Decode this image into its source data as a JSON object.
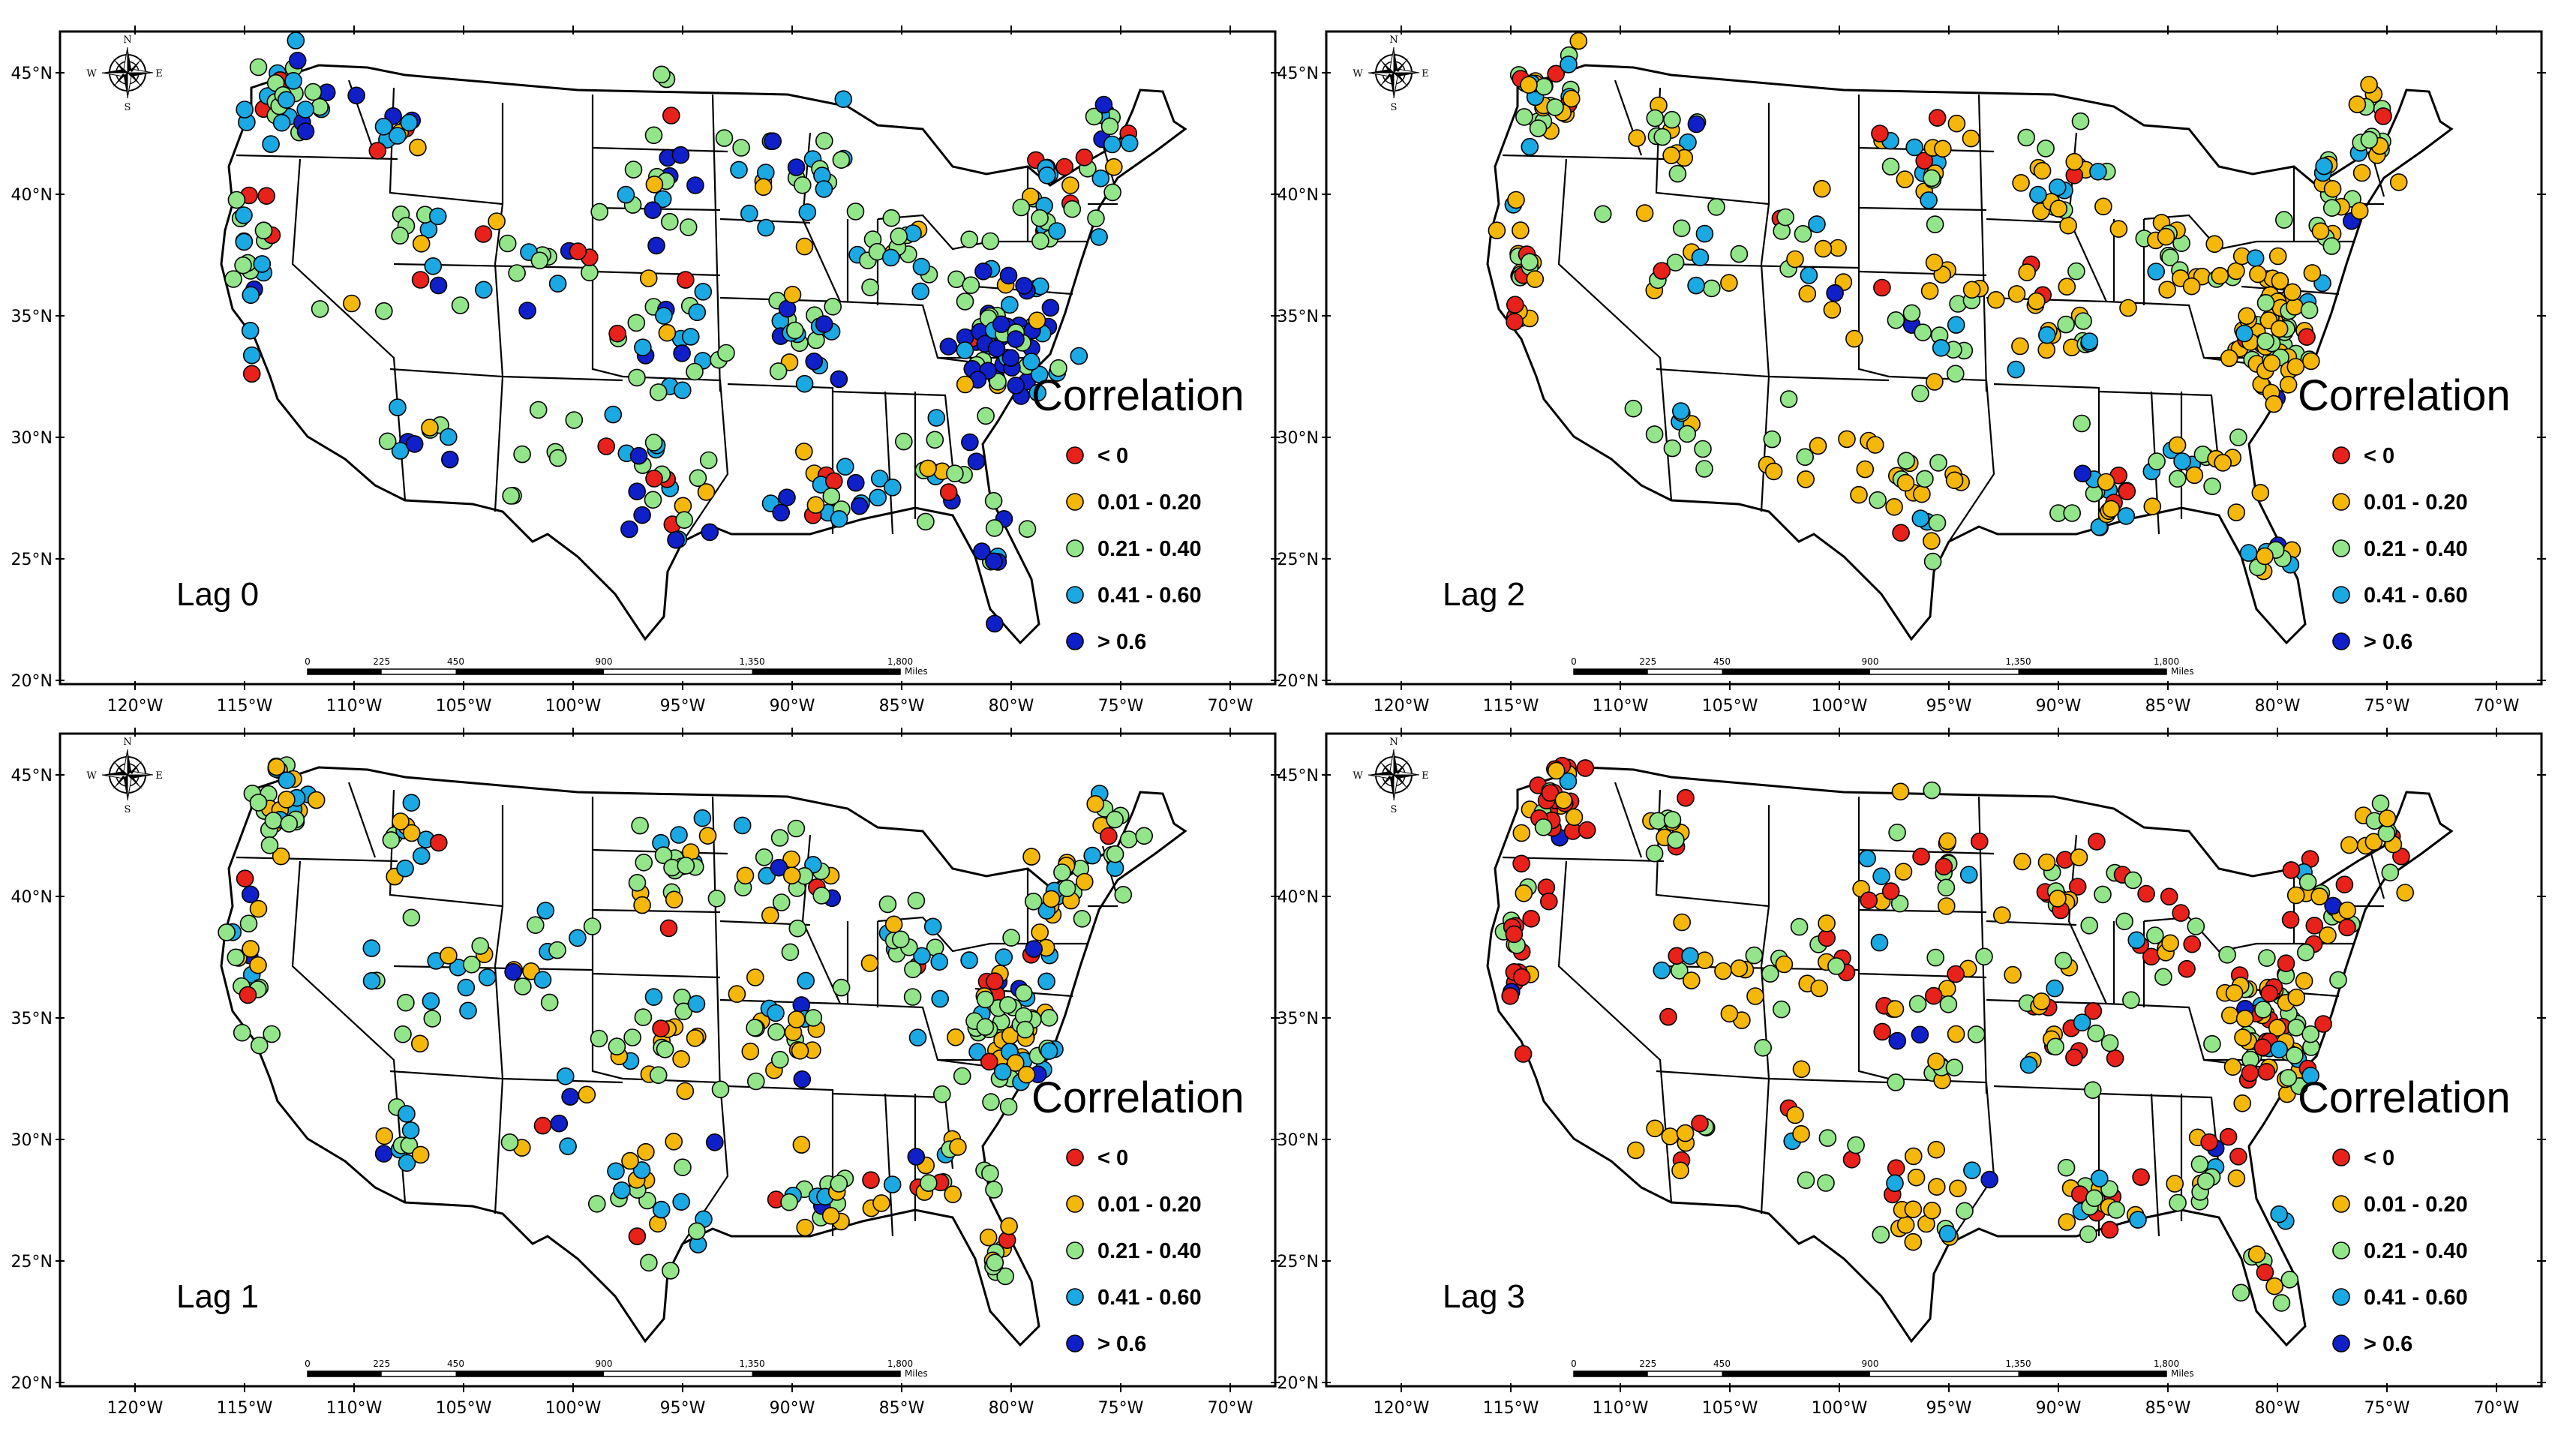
{
  "legend": {
    "title": "Correlation",
    "classes": [
      {
        "label": "< 0",
        "color": "#e8211b"
      },
      {
        "label": "0.01 - 0.20",
        "color": "#f5b80a"
      },
      {
        "label": "0.21 - 0.40",
        "color": "#93e58a"
      },
      {
        "label": "0.41 - 0.60",
        "color": "#1aa9e3"
      },
      {
        "label": "> 0.6",
        "color": "#1020c8"
      }
    ]
  },
  "axes": {
    "x_ticks": [
      "120°W",
      "115°W",
      "110°W",
      "105°W",
      "100°W",
      "95°W",
      "90°W",
      "85°W",
      "80°W",
      "75°W",
      "70°W"
    ],
    "y_ticks": [
      "45°N",
      "40°N",
      "35°N",
      "30°N",
      "25°N",
      "20°N"
    ]
  },
  "scale_bar": {
    "ticks": [
      "0",
      "225",
      "450",
      "900",
      "1,350",
      "1,800"
    ],
    "unit": "Miles"
  },
  "compass": {
    "n": "N",
    "s": "S",
    "e": "E",
    "w": "W"
  },
  "panels": [
    {
      "label": "Lag 0"
    },
    {
      "label": "Lag 2"
    },
    {
      "label": "Lag 1"
    },
    {
      "label": "Lag 3"
    }
  ]
}
